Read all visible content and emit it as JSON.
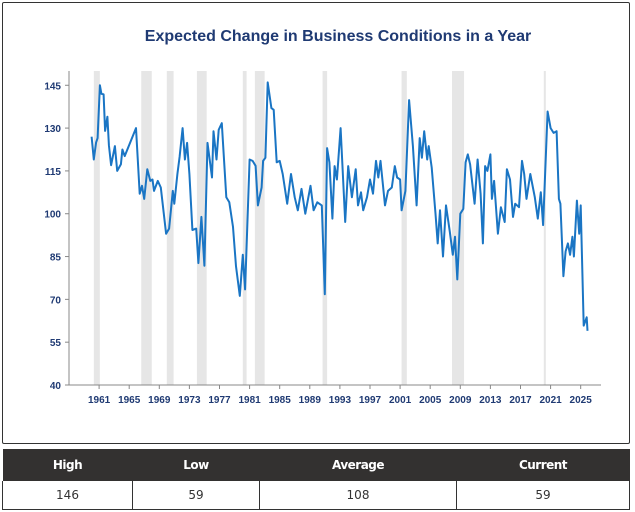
{
  "chart_data": {
    "type": "line",
    "title": "Expected Change in Business Conditions in a Year",
    "xlabel": "",
    "ylabel": "",
    "xlim": [
      1957,
      2027.7
    ],
    "ylim": [
      40,
      150
    ],
    "x_ticks": [
      "1961",
      "1965",
      "1969",
      "1973",
      "1977",
      "1981",
      "1985",
      "1989",
      "1993",
      "1997",
      "2001",
      "2005",
      "2009",
      "2013",
      "2017",
      "2021",
      "2025"
    ],
    "y_ticks": [
      "40",
      "55",
      "70",
      "85",
      "100",
      "115",
      "130",
      "145"
    ],
    "grid": false,
    "line_color": "#1a75c4",
    "band_color": "#e6e6e6",
    "shaded_periods": [
      [
        1960.3,
        1961.1
      ],
      [
        1966.6,
        1968.0
      ],
      [
        1970.0,
        1970.9
      ],
      [
        1974.0,
        1975.3
      ],
      [
        1980.1,
        1980.6
      ],
      [
        1981.7,
        1983.0
      ],
      [
        1990.7,
        1991.3
      ],
      [
        2001.2,
        2001.9
      ],
      [
        2007.9,
        2009.5
      ],
      [
        2020.1,
        2020.3
      ]
    ],
    "series": [
      {
        "points": [
          [
            1960,
            127
          ],
          [
            1960.3,
            119
          ],
          [
            1960.6,
            125
          ],
          [
            1960.8,
            126.5
          ],
          [
            1961.1,
            145
          ],
          [
            1961.3,
            142
          ],
          [
            1961.6,
            141.8
          ],
          [
            1961.8,
            129
          ],
          [
            1962.1,
            134
          ],
          [
            1962.3,
            124
          ],
          [
            1962.6,
            117
          ],
          [
            1963.1,
            123.7
          ],
          [
            1963.4,
            115
          ],
          [
            1963.9,
            117.3
          ],
          [
            1964.1,
            122.5
          ],
          [
            1964.4,
            120.2
          ],
          [
            1965.9,
            130
          ],
          [
            1966.4,
            107
          ],
          [
            1966.7,
            109.8
          ],
          [
            1967,
            105.2
          ],
          [
            1967.4,
            115.6
          ],
          [
            1967.8,
            111.5
          ],
          [
            1968.1,
            112
          ],
          [
            1968.3,
            108
          ],
          [
            1968.8,
            111.5
          ],
          [
            1969.2,
            109.2
          ],
          [
            1969.9,
            93
          ],
          [
            1970.3,
            94.8
          ],
          [
            1970.8,
            108
          ],
          [
            1971,
            103.5
          ],
          [
            1971.4,
            113.9
          ],
          [
            1971.7,
            119.9
          ],
          [
            1972.1,
            130
          ],
          [
            1972.4,
            119
          ],
          [
            1972.7,
            124.8
          ],
          [
            1973,
            113.9
          ],
          [
            1973.4,
            94.3
          ],
          [
            1973.9,
            94.8
          ],
          [
            1974.2,
            82.7
          ],
          [
            1974.6,
            98.9
          ],
          [
            1975,
            81.8
          ],
          [
            1975.4,
            124.8
          ],
          [
            1976,
            112.7
          ],
          [
            1976.2,
            128.9
          ],
          [
            1976.6,
            119
          ],
          [
            1976.9,
            129.4
          ],
          [
            1977.3,
            131.7
          ],
          [
            1977.9,
            105.8
          ],
          [
            1978.3,
            104
          ],
          [
            1978.8,
            95.4
          ],
          [
            1979.2,
            81.6
          ],
          [
            1979.7,
            71.2
          ],
          [
            1980.1,
            85.6
          ],
          [
            1980.4,
            73.5
          ],
          [
            1981,
            119
          ],
          [
            1981.4,
            118.5
          ],
          [
            1981.8,
            116.8
          ],
          [
            1982.1,
            102.9
          ],
          [
            1982.6,
            109.2
          ],
          [
            1982.8,
            118.5
          ],
          [
            1983.1,
            119.6
          ],
          [
            1983.4,
            146
          ],
          [
            1983.9,
            137
          ],
          [
            1984.2,
            136.4
          ],
          [
            1984.6,
            118
          ],
          [
            1985,
            118.5
          ],
          [
            1985.4,
            113.9
          ],
          [
            1986,
            103.5
          ],
          [
            1986.5,
            113.9
          ],
          [
            1987,
            105.8
          ],
          [
            1987.4,
            101.2
          ],
          [
            1987.9,
            108.7
          ],
          [
            1988.4,
            100
          ],
          [
            1989.1,
            109.8
          ],
          [
            1989.5,
            101.2
          ],
          [
            1990,
            104
          ],
          [
            1990.6,
            102.9
          ],
          [
            1991,
            71.8
          ],
          [
            1991.3,
            123
          ],
          [
            1991.6,
            118
          ],
          [
            1992,
            98.3
          ],
          [
            1992.3,
            116.7
          ],
          [
            1992.6,
            112
          ],
          [
            1993.1,
            130
          ],
          [
            1993.7,
            97.1
          ],
          [
            1994.1,
            116.7
          ],
          [
            1994.6,
            105.8
          ],
          [
            1995.1,
            115.6
          ],
          [
            1995.4,
            102.9
          ],
          [
            1995.8,
            107.5
          ],
          [
            1996.1,
            101.2
          ],
          [
            1996.6,
            105.8
          ],
          [
            1997,
            112
          ],
          [
            1997.4,
            107
          ],
          [
            1997.8,
            118.5
          ],
          [
            1998.1,
            112.7
          ],
          [
            1998.4,
            118.5
          ],
          [
            1999,
            102.9
          ],
          [
            1999.4,
            108
          ],
          [
            1999.9,
            109.2
          ],
          [
            2000.3,
            116.7
          ],
          [
            2000.6,
            112.7
          ],
          [
            2001,
            112
          ],
          [
            2001.2,
            101.2
          ],
          [
            2001.7,
            108
          ],
          [
            2002.2,
            139.8
          ],
          [
            2002.7,
            123.7
          ],
          [
            2003.2,
            102.9
          ],
          [
            2003.6,
            126.5
          ],
          [
            2003.9,
            119.6
          ],
          [
            2004.2,
            128.9
          ],
          [
            2004.6,
            119
          ],
          [
            2004.8,
            123.7
          ],
          [
            2005.2,
            116.2
          ],
          [
            2005.7,
            100
          ],
          [
            2006,
            89.6
          ],
          [
            2006.3,
            101.2
          ],
          [
            2006.7,
            85
          ],
          [
            2007.1,
            102.9
          ],
          [
            2007.6,
            93.7
          ],
          [
            2008,
            85.6
          ],
          [
            2008.3,
            91.9
          ],
          [
            2008.6,
            77
          ],
          [
            2009,
            100
          ],
          [
            2009.4,
            101.7
          ],
          [
            2009.7,
            118
          ],
          [
            2010,
            120.8
          ],
          [
            2010.3,
            117.3
          ],
          [
            2010.9,
            103.5
          ],
          [
            2011.3,
            119
          ],
          [
            2011.7,
            107
          ],
          [
            2012,
            89.6
          ],
          [
            2012.3,
            116.7
          ],
          [
            2012.6,
            115
          ],
          [
            2013,
            120.8
          ],
          [
            2013.2,
            105.2
          ],
          [
            2013.5,
            111.5
          ],
          [
            2014,
            93
          ],
          [
            2014.4,
            102.3
          ],
          [
            2014.9,
            97.1
          ],
          [
            2015.2,
            115.6
          ],
          [
            2015.6,
            112
          ],
          [
            2016,
            98.9
          ],
          [
            2016.3,
            103.5
          ],
          [
            2016.8,
            102.3
          ],
          [
            2017.2,
            118.5
          ],
          [
            2017.5,
            113.9
          ],
          [
            2017.8,
            105.2
          ],
          [
            2018.3,
            113.9
          ],
          [
            2018.9,
            105.8
          ],
          [
            2019.3,
            98.3
          ],
          [
            2019.7,
            107.5
          ],
          [
            2020,
            96
          ],
          [
            2020.6,
            135.8
          ],
          [
            2021,
            130
          ],
          [
            2021.4,
            128.3
          ],
          [
            2021.8,
            128.9
          ],
          [
            2022.1,
            105.2
          ],
          [
            2022.3,
            103.5
          ],
          [
            2022.7,
            78.1
          ],
          [
            2023,
            86.8
          ],
          [
            2023.3,
            89.6
          ],
          [
            2023.6,
            85.6
          ],
          [
            2023.9,
            91.9
          ],
          [
            2024.1,
            85
          ],
          [
            2024.5,
            104.6
          ],
          [
            2024.8,
            93
          ],
          [
            2025,
            102.9
          ],
          [
            2025.4,
            60.8
          ],
          [
            2025.8,
            63.7
          ],
          [
            2025.9,
            59
          ]
        ]
      }
    ]
  },
  "stats": {
    "headers": [
      "High",
      "Low",
      "Average",
      "Current"
    ],
    "values": [
      "146",
      "59",
      "108",
      "59"
    ]
  }
}
